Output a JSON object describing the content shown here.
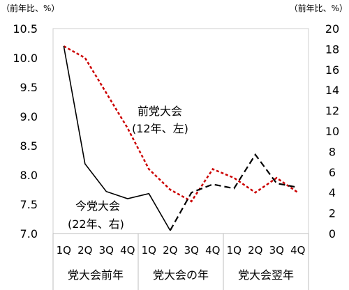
{
  "chart_data": {
    "type": "line",
    "left_axis_unit": "（前年比、%）",
    "right_axis_unit": "（前年比、%）",
    "left_axis": {
      "range": [
        7.0,
        10.5
      ],
      "ticks": [
        "7.0",
        "7.5",
        "8.0",
        "8.5",
        "9.0",
        "9.5",
        "10.0",
        "10.5"
      ]
    },
    "right_axis": {
      "range": [
        0,
        20
      ],
      "ticks": [
        "0",
        "2",
        "4",
        "6",
        "8",
        "10",
        "12",
        "14",
        "16",
        "18",
        "20"
      ]
    },
    "quarters": [
      "1Q",
      "2Q",
      "3Q",
      "4Q",
      "1Q",
      "2Q",
      "3Q",
      "4Q",
      "1Q",
      "2Q",
      "3Q",
      "4Q"
    ],
    "groups": [
      "党大会前年",
      "党大会の年",
      "党大会翌年"
    ],
    "series": [
      {
        "name": "前党大会（12年、左）",
        "axis": "left",
        "color": "#cc0000",
        "style": "dotted",
        "values": [
          10.2,
          10.0,
          9.4,
          8.8,
          8.1,
          7.75,
          7.55,
          8.1,
          7.95,
          7.7,
          7.95,
          7.7
        ]
      },
      {
        "name": "今党大会（22年、右）",
        "axis": "right",
        "color": "#000000",
        "style": "solid_then_dashed",
        "values": [
          18.3,
          6.8,
          4.1,
          3.4,
          3.9,
          0.3,
          4.0,
          4.8,
          4.4,
          7.7,
          4.9,
          4.5
        ]
      }
    ],
    "annotations": {
      "prev_line1": "前党大会",
      "prev_line2": "(12年、左)",
      "curr_line1": "今党大会",
      "curr_line2": "(22年、右)"
    },
    "grid": false
  }
}
